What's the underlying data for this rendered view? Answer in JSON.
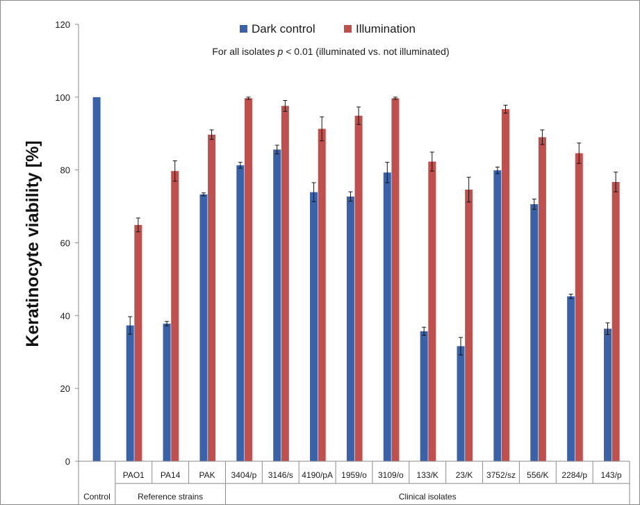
{
  "chart_data": {
    "type": "bar",
    "ylabel": "Keratinocyte viability [%]",
    "annotation": {
      "prefix": "For all isolates ",
      "variable": "p",
      "suffix": " < 0.01 (illuminated vs. not illuminated)"
    },
    "ylim": [
      0,
      120
    ],
    "yticks": [
      0,
      20,
      40,
      60,
      80,
      100,
      120
    ],
    "legend_position": "top-center",
    "categories": [
      "Control",
      "PAO1",
      "PA14",
      "PAK",
      "3404/p",
      "3146/s",
      "4190/pA",
      "1959/o",
      "3109/o",
      "133/K",
      "23/K",
      "3752/sz",
      "556/K",
      "2284/p",
      "143/p"
    ],
    "groups": [
      {
        "label": "Control",
        "count": 1
      },
      {
        "label": "Reference strains",
        "count": 3
      },
      {
        "label": "Clinical isolates",
        "count": 11
      }
    ],
    "series": [
      {
        "name": "Dark control",
        "color": "#3a62a8",
        "values": [
          100,
          37.3,
          37.8,
          73.3,
          81.3,
          85.6,
          73.9,
          72.7,
          79.3,
          35.7,
          31.6,
          79.9,
          70.6,
          45.3,
          36.4
        ],
        "errors": [
          null,
          2.4,
          0.6,
          0.4,
          0.8,
          1.2,
          2.6,
          1.3,
          2.8,
          1.1,
          2.4,
          0.9,
          1.4,
          0.6,
          1.6
        ]
      },
      {
        "name": "Illumination",
        "color": "#c0504d",
        "values": [
          null,
          64.9,
          79.7,
          89.7,
          99.7,
          97.6,
          91.3,
          94.9,
          99.7,
          82.3,
          74.6,
          96.7,
          89.0,
          84.6,
          76.7
        ],
        "errors": [
          null,
          1.9,
          2.8,
          1.3,
          0.3,
          1.5,
          3.3,
          2.4,
          0.3,
          2.6,
          3.4,
          1.1,
          2.0,
          2.8,
          2.7
        ]
      }
    ]
  }
}
